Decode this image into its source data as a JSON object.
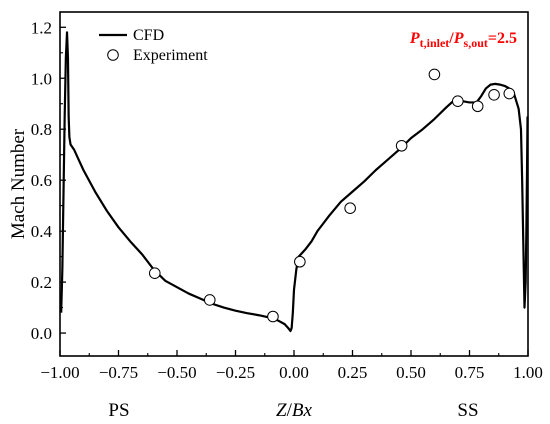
{
  "chart_data": {
    "type": "line",
    "xlabel": {
      "italic": "Z",
      "plain": "/",
      "italic2": "Bx"
    },
    "ylabel": "Mach Number",
    "xlim": [
      -1.0,
      1.0
    ],
    "ylim": [
      -0.09,
      1.26
    ],
    "x_ticks": [
      -1.0,
      -0.75,
      -0.5,
      -0.25,
      0.0,
      0.25,
      0.5,
      0.75,
      1.0
    ],
    "x_tick_labels": [
      "−1.00",
      "−0.75",
      "−0.50",
      "−0.25",
      "0.00",
      "0.25",
      "0.50",
      "0.75",
      "1.00"
    ],
    "y_ticks": [
      0.0,
      0.2,
      0.4,
      0.6,
      0.8,
      1.0,
      1.2
    ],
    "y_tick_labels": [
      "0.0",
      "0.2",
      "0.4",
      "0.6",
      "0.8",
      "1.0",
      "1.2"
    ],
    "side_labels": {
      "left": "PS",
      "right": "SS"
    },
    "legend": {
      "position": "top-left",
      "entries": [
        "CFD",
        "Experiment"
      ]
    },
    "annotation": {
      "color": "#ff0000",
      "parts": [
        {
          "text": "P",
          "italic": true
        },
        {
          "text": "t,inlet",
          "sub": true
        },
        {
          "text": "/",
          "italic": false
        },
        {
          "text": "P",
          "italic": true
        },
        {
          "text": "s,out",
          "sub": true
        },
        {
          "text": "=2.5",
          "italic": false
        }
      ]
    },
    "grid": false,
    "series": [
      {
        "name": "CFD",
        "style": "line",
        "color": "#000000",
        "points": [
          [
            -0.995,
            0.08
          ],
          [
            -0.99,
            0.25
          ],
          [
            -0.985,
            0.55
          ],
          [
            -0.98,
            0.85
          ],
          [
            -0.975,
            1.08
          ],
          [
            -0.97,
            1.18
          ],
          [
            -0.966,
            1.08
          ],
          [
            -0.963,
            0.85
          ],
          [
            -0.96,
            0.77
          ],
          [
            -0.955,
            0.74
          ],
          [
            -0.94,
            0.72
          ],
          [
            -0.92,
            0.68
          ],
          [
            -0.9,
            0.64
          ],
          [
            -0.85,
            0.555
          ],
          [
            -0.8,
            0.48
          ],
          [
            -0.75,
            0.415
          ],
          [
            -0.7,
            0.36
          ],
          [
            -0.65,
            0.31
          ],
          [
            -0.6,
            0.25
          ],
          [
            -0.55,
            0.205
          ],
          [
            -0.5,
            0.18
          ],
          [
            -0.45,
            0.155
          ],
          [
            -0.4,
            0.135
          ],
          [
            -0.35,
            0.115
          ],
          [
            -0.3,
            0.1
          ],
          [
            -0.25,
            0.088
          ],
          [
            -0.2,
            0.078
          ],
          [
            -0.15,
            0.07
          ],
          [
            -0.1,
            0.06
          ],
          [
            -0.07,
            0.05
          ],
          [
            -0.04,
            0.035
          ],
          [
            -0.025,
            0.02
          ],
          [
            -0.015,
            0.008
          ],
          [
            -0.01,
            0.02
          ],
          [
            -0.005,
            0.08
          ],
          [
            0.0,
            0.17
          ],
          [
            0.01,
            0.25
          ],
          [
            0.02,
            0.3
          ],
          [
            0.03,
            0.31
          ],
          [
            0.05,
            0.33
          ],
          [
            0.075,
            0.36
          ],
          [
            0.1,
            0.4
          ],
          [
            0.125,
            0.43
          ],
          [
            0.15,
            0.46
          ],
          [
            0.2,
            0.515
          ],
          [
            0.25,
            0.555
          ],
          [
            0.3,
            0.595
          ],
          [
            0.35,
            0.64
          ],
          [
            0.4,
            0.68
          ],
          [
            0.45,
            0.72
          ],
          [
            0.5,
            0.765
          ],
          [
            0.55,
            0.8
          ],
          [
            0.6,
            0.84
          ],
          [
            0.65,
            0.885
          ],
          [
            0.68,
            0.91
          ],
          [
            0.7,
            0.915
          ],
          [
            0.72,
            0.91
          ],
          [
            0.75,
            0.905
          ],
          [
            0.78,
            0.905
          ],
          [
            0.8,
            0.93
          ],
          [
            0.82,
            0.96
          ],
          [
            0.84,
            0.975
          ],
          [
            0.86,
            0.978
          ],
          [
            0.88,
            0.975
          ],
          [
            0.9,
            0.97
          ],
          [
            0.92,
            0.96
          ],
          [
            0.94,
            0.94
          ],
          [
            0.96,
            0.88
          ],
          [
            0.97,
            0.8
          ],
          [
            0.975,
            0.6
          ],
          [
            0.98,
            0.35
          ],
          [
            0.985,
            0.1
          ],
          [
            0.99,
            0.2
          ],
          [
            0.993,
            0.4
          ],
          [
            0.996,
            0.65
          ],
          [
            0.998,
            0.85
          ]
        ]
      },
      {
        "name": "Experiment",
        "style": "marker",
        "marker": "open-circle",
        "points": [
          [
            -0.595,
            0.235
          ],
          [
            -0.36,
            0.13
          ],
          [
            -0.09,
            0.065
          ],
          [
            0.025,
            0.28
          ],
          [
            0.24,
            0.49
          ],
          [
            0.46,
            0.735
          ],
          [
            0.6,
            1.015
          ],
          [
            0.7,
            0.91
          ],
          [
            0.785,
            0.89
          ],
          [
            0.855,
            0.935
          ],
          [
            0.92,
            0.94
          ]
        ]
      }
    ]
  }
}
